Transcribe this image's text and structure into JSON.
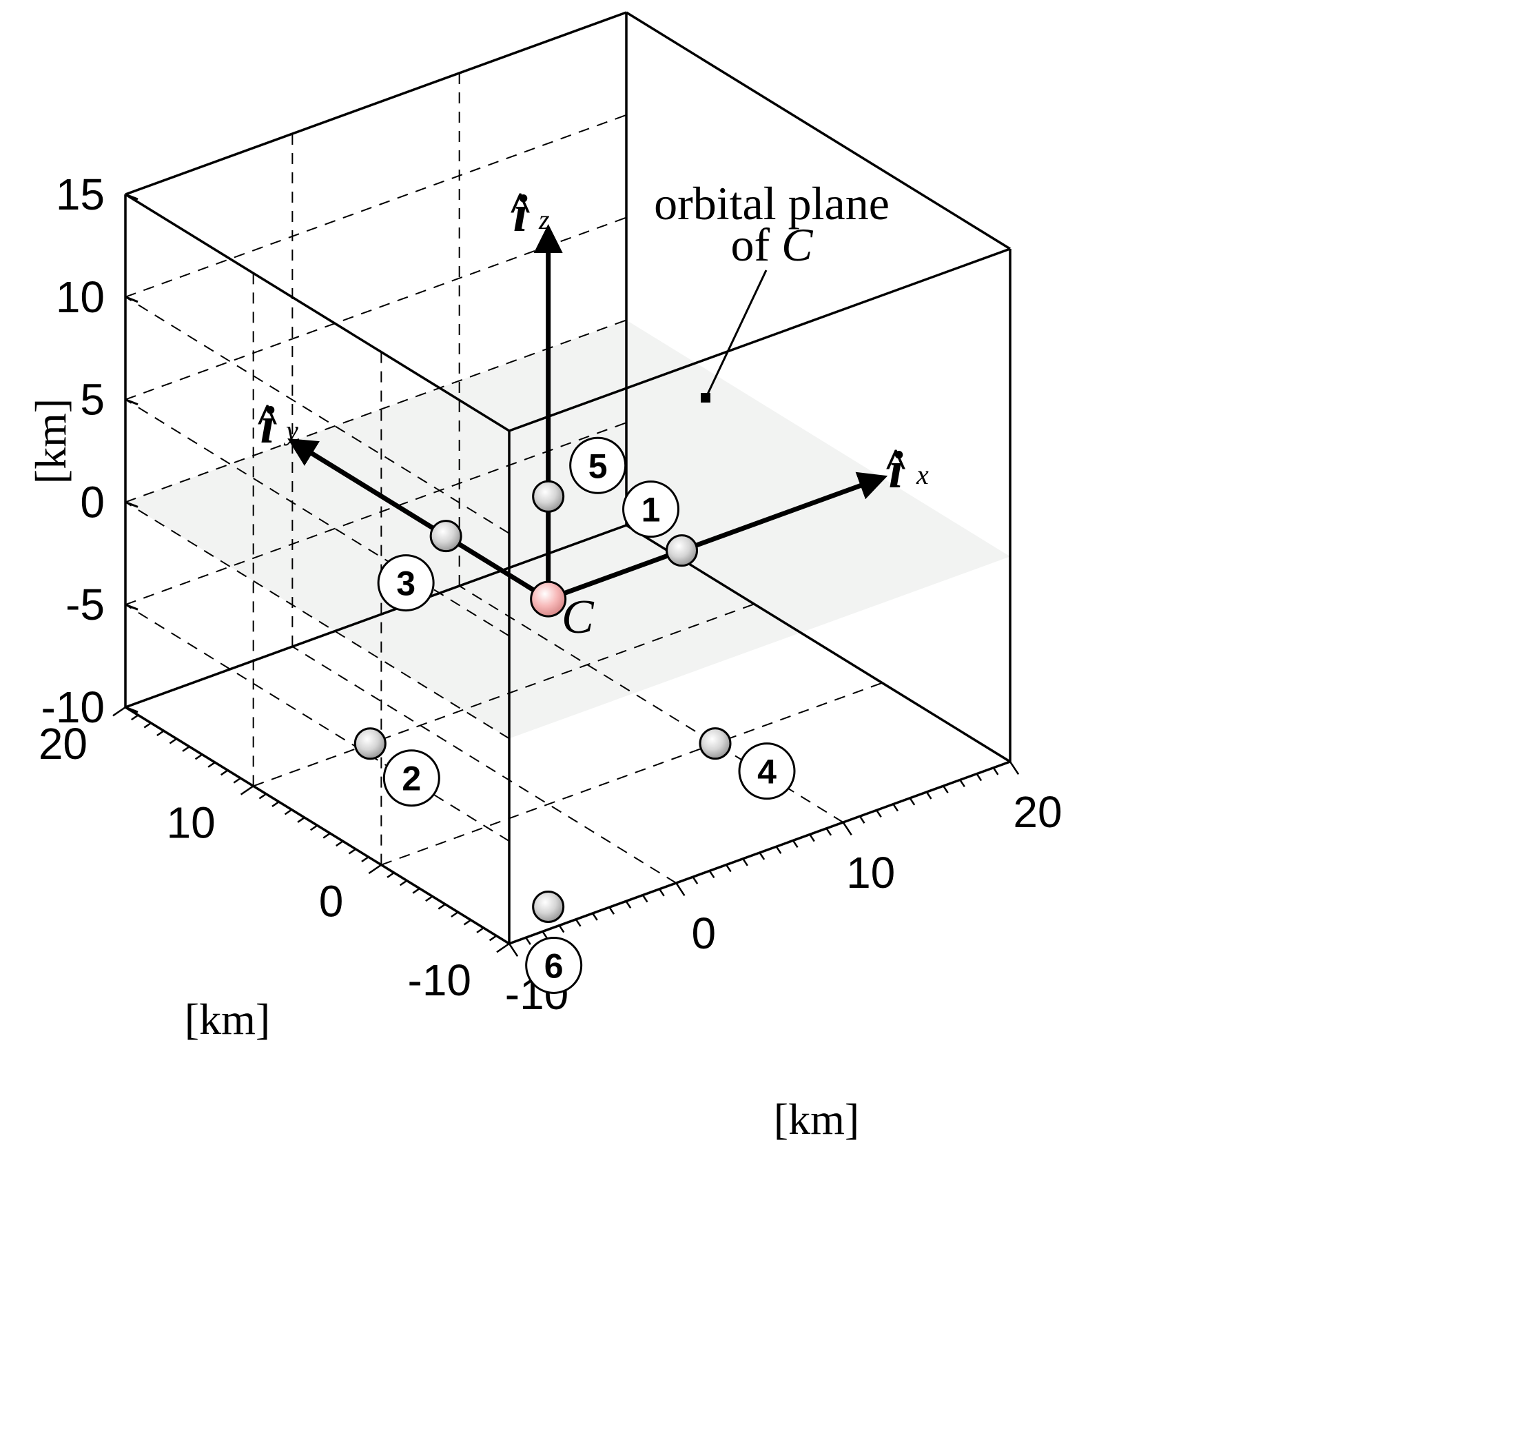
{
  "chart_data": {
    "type": "scatter",
    "title": "",
    "projection": "3d",
    "axes": {
      "x": {
        "label": "[km]",
        "range": [
          -10,
          20
        ],
        "ticks": [
          -10,
          0,
          10,
          20
        ]
      },
      "y": {
        "label": "[km]",
        "range": [
          -10,
          20
        ],
        "ticks": [
          -10,
          0,
          10,
          20
        ]
      },
      "z": {
        "label": "[km]",
        "range": [
          -10,
          15
        ],
        "ticks": [
          -10,
          -5,
          0,
          5,
          10,
          15
        ]
      }
    },
    "grid": true,
    "plane": {
      "label_line1": "orbital plane",
      "label_line2_prefix": "of ",
      "label_line2_italic": "C",
      "z": 0
    },
    "unit_vectors": [
      {
        "name": "x",
        "base": "i",
        "subscript": "x"
      },
      {
        "name": "y",
        "base": "i",
        "subscript": "y"
      },
      {
        "name": "z",
        "base": "i",
        "subscript": "z"
      }
    ],
    "origin": {
      "label": "C",
      "x": 0,
      "y": 0,
      "z": 0,
      "color": "#f4b4b4"
    },
    "points": [
      {
        "label": "1",
        "x": 8,
        "y": 0,
        "z": 0
      },
      {
        "label": "2",
        "x": -3,
        "y": 10,
        "z": -10
      },
      {
        "label": "3",
        "x": 0,
        "y": 8,
        "z": 0
      },
      {
        "label": "4",
        "x": 10,
        "y": 0,
        "z": -10
      },
      {
        "label": "5",
        "x": 0,
        "y": 0,
        "z": 5
      },
      {
        "label": "6",
        "x": 0,
        "y": 0,
        "z": -15
      }
    ],
    "point_color": "#d0d0d0"
  }
}
